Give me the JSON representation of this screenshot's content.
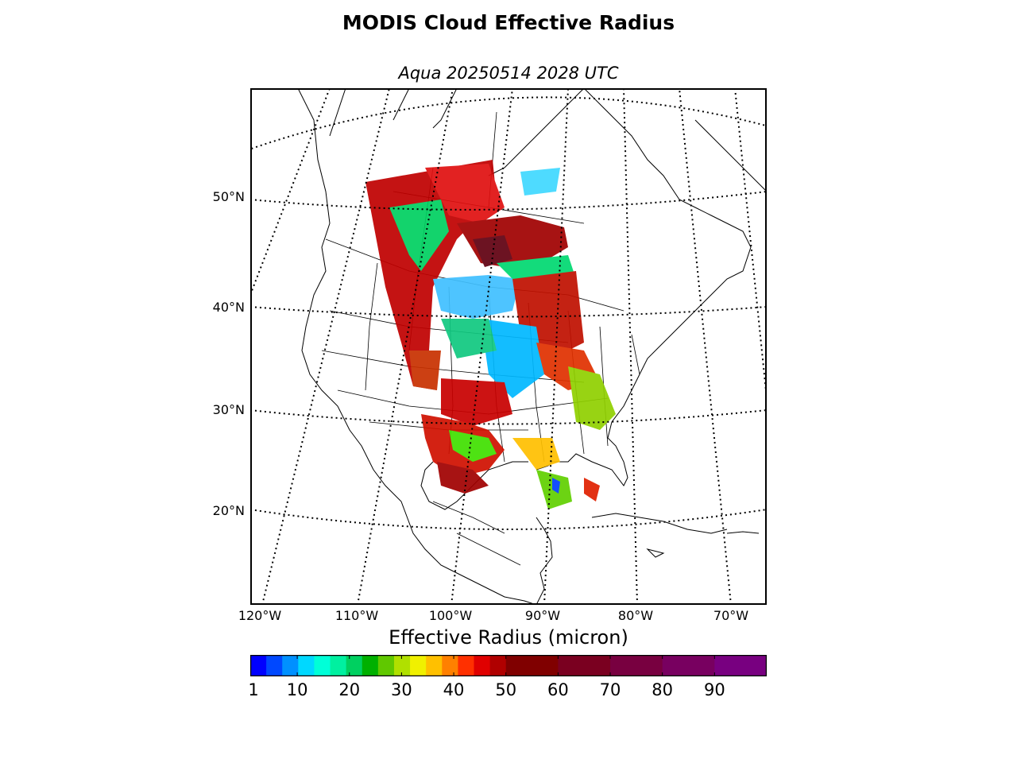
{
  "title": "MODIS Cloud Effective Radius",
  "subtitle": "Aqua 20250514 2028 UTC",
  "latitude_labels": [
    "50°N",
    "40°N",
    "30°N",
    "20°N"
  ],
  "longitude_labels": [
    "120°W",
    "110°W",
    "100°W",
    "90°W",
    "80°W",
    "70°W"
  ],
  "colorbar": {
    "label": "Effective Radius (micron)",
    "ticks": [
      "1",
      "10",
      "20",
      "30",
      "40",
      "50",
      "60",
      "70",
      "80",
      "90"
    ],
    "range": [
      1,
      100
    ]
  },
  "colors": {
    "background": "#ffffff",
    "frame": "#000000",
    "coastline": "#000000"
  },
  "palette": [
    "#0000ff",
    "#0048ff",
    "#0090ff",
    "#00d8ff",
    "#00ffd8",
    "#00f0a0",
    "#00d060",
    "#00b000",
    "#60c800",
    "#b0e000",
    "#f0f000",
    "#ffc000",
    "#ff8000",
    "#ff3000",
    "#e00000",
    "#b00000",
    "#800000",
    "#7a0020",
    "#780040",
    "#780060",
    "#780080"
  ]
}
